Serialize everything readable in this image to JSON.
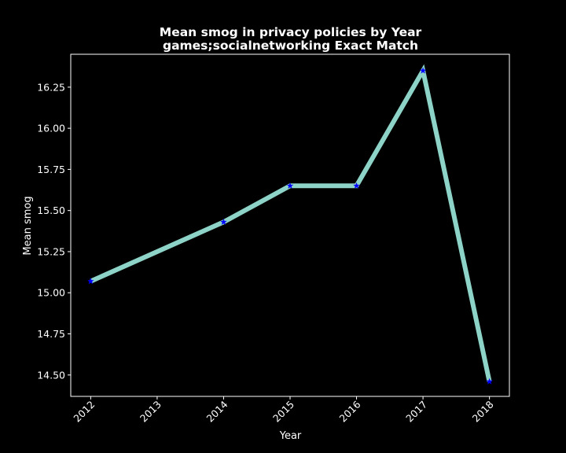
{
  "chart_data": {
    "type": "line",
    "title": "Mean smog in privacy policies by Year",
    "subtitle": "games;socialnetworking Exact Match",
    "xlabel": "Year",
    "ylabel": "Mean smog",
    "x": [
      2012,
      2014,
      2015,
      2016,
      2017,
      2018
    ],
    "x_ticks": [
      "2012",
      "2013",
      "2014",
      "2015",
      "2016",
      "2017",
      "2018"
    ],
    "x_tick_values": [
      2012,
      2013,
      2014,
      2015,
      2016,
      2017,
      2018
    ],
    "y_ticks": [
      "14.50",
      "14.75",
      "15.00",
      "15.25",
      "15.50",
      "15.75",
      "16.00",
      "16.25"
    ],
    "y_tick_values": [
      14.5,
      14.75,
      15.0,
      15.25,
      15.5,
      15.75,
      16.0,
      16.25
    ],
    "xlim": [
      2011.7,
      2018.3
    ],
    "ylim": [
      14.37,
      16.45
    ],
    "series": [
      {
        "values": [
          15.07,
          15.43,
          15.65,
          15.65,
          16.35,
          14.46
        ],
        "color": "#8dd3c7",
        "marker": "star",
        "marker_color": "#0000ff"
      }
    ],
    "grid": false,
    "background": "#000000",
    "text_color": "#ffffff"
  }
}
